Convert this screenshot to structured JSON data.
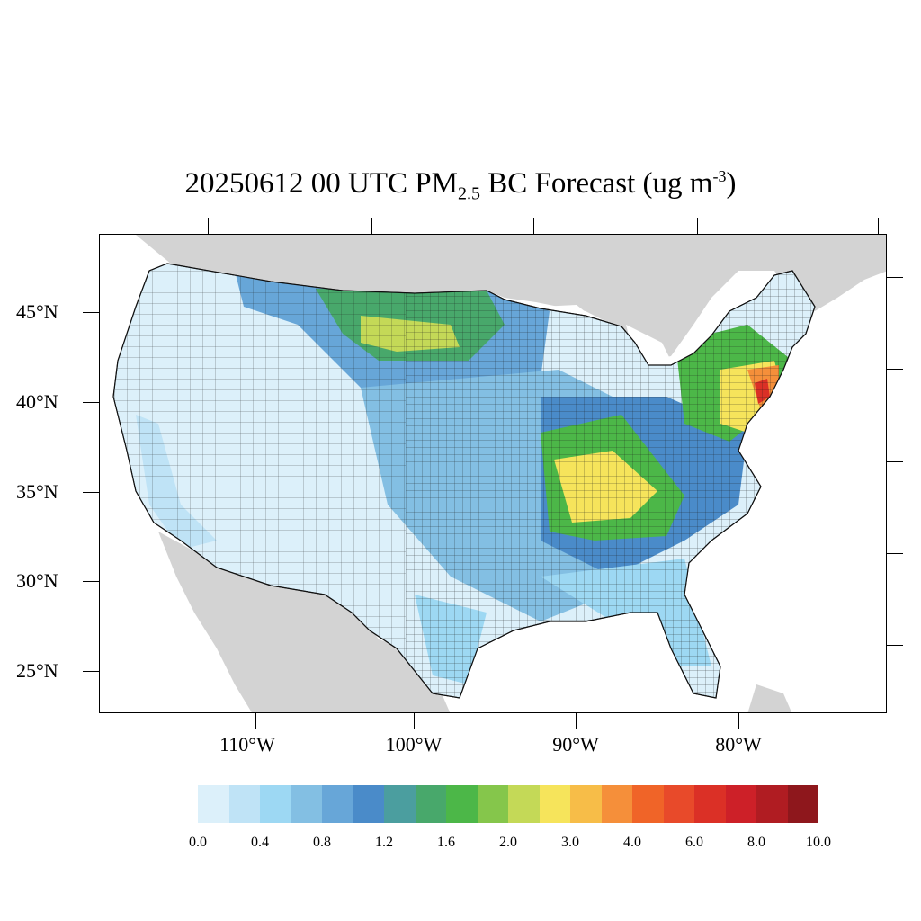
{
  "title": {
    "main": "20250612 00 UTC PM",
    "subscript": "2.5",
    "after_sub": " BC Forecast (ug m",
    "superscript": "-3",
    "closing": ")"
  },
  "axes": {
    "lat_labels": [
      "45°N",
      "40°N",
      "35°N",
      "30°N",
      "25°N"
    ],
    "lon_labels": [
      "110°W",
      "100°W",
      "90°W",
      "80°W"
    ]
  },
  "colorbar": {
    "colors": [
      "#dcf0fa",
      "#bfe3f6",
      "#9dd8f3",
      "#83bfe3",
      "#67a6d8",
      "#4a8bc9",
      "#4b9e9f",
      "#48a86b",
      "#4cb748",
      "#85c64b",
      "#c4d957",
      "#f6e45b",
      "#f7bd48",
      "#f58f3a",
      "#f06428",
      "#e84a2a",
      "#db3026",
      "#cd2028",
      "#b01c22",
      "#8e171c"
    ],
    "labels": [
      "0.0",
      "0.4",
      "0.8",
      "1.2",
      "1.6",
      "2.0",
      "3.0",
      "4.0",
      "6.0",
      "8.0",
      "10.0"
    ]
  },
  "map_colors": {
    "ocean": "#ffffff",
    "land_outside": "#d3d3d3",
    "border": "#222222"
  }
}
